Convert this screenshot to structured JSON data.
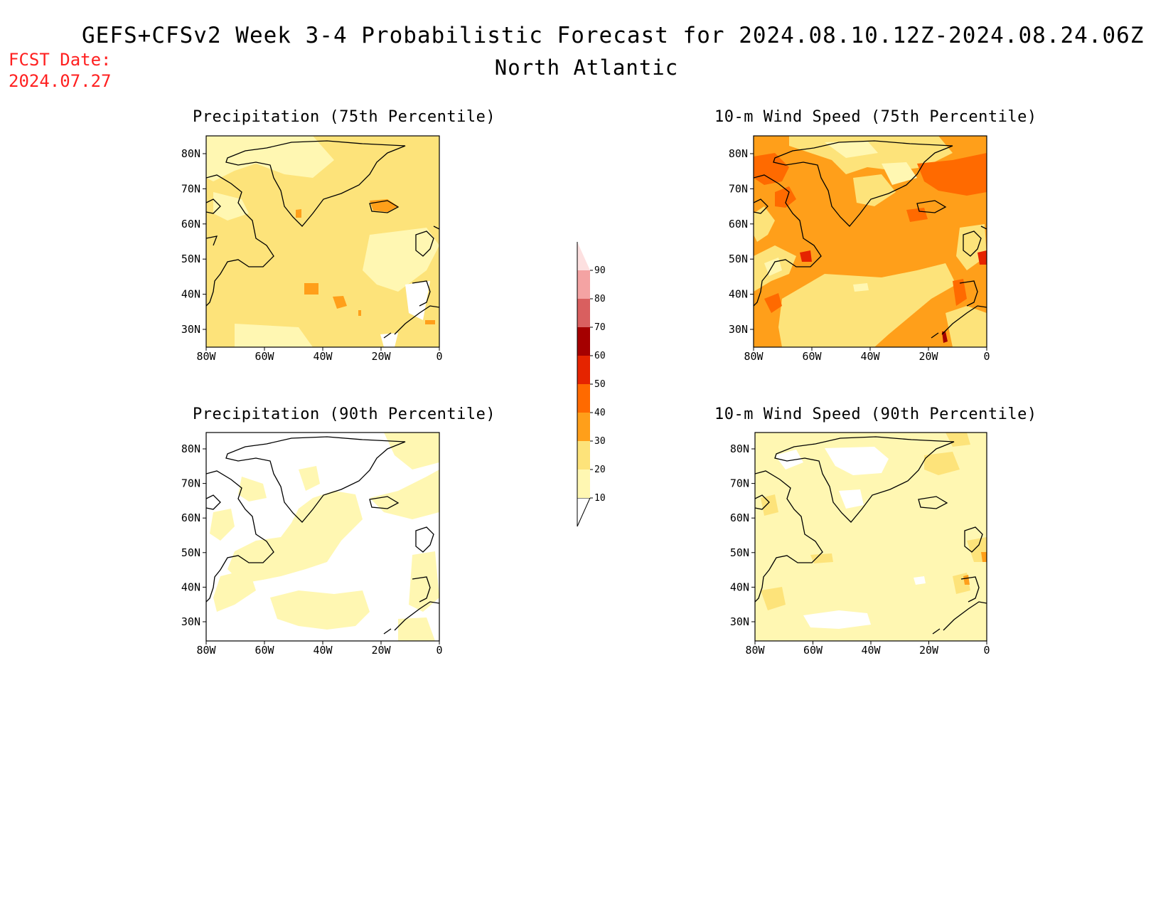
{
  "figure": {
    "title": "GEFS+CFSv2 Week 3-4 Probabilistic Forecast for 2024.08.10.12Z-2024.08.24.06Z",
    "subtitle": "North Atlantic",
    "fcst_line1": "FCST Date:",
    "fcst_line2": "2024.07.27"
  },
  "panels": [
    {
      "title": "Precipitation (75th Percentile)",
      "base_color": "#fde37a"
    },
    {
      "title": "10-m Wind Speed (75th Percentile)",
      "base_color": "#ff9f1a"
    },
    {
      "title": "Precipitation (90th Percentile)",
      "base_color": "#ffffff"
    },
    {
      "title": "10-m Wind Speed (90th Percentile)",
      "base_color": "#fff7b2"
    }
  ],
  "axes": {
    "lat_labels": [
      "80N",
      "70N",
      "60N",
      "50N",
      "40N",
      "30N"
    ],
    "lon_labels": [
      "80W",
      "60W",
      "40W",
      "20W",
      "0"
    ]
  },
  "colorbar": {
    "levels": [
      "10",
      "20",
      "30",
      "40",
      "50",
      "60",
      "70",
      "80",
      "90"
    ],
    "colors": [
      "#fff7b2",
      "#fde37a",
      "#ff9f1a",
      "#ff6a00",
      "#e52400",
      "#a50000",
      "#d95f5f",
      "#f4a3a3",
      "#fde0e0"
    ]
  }
}
